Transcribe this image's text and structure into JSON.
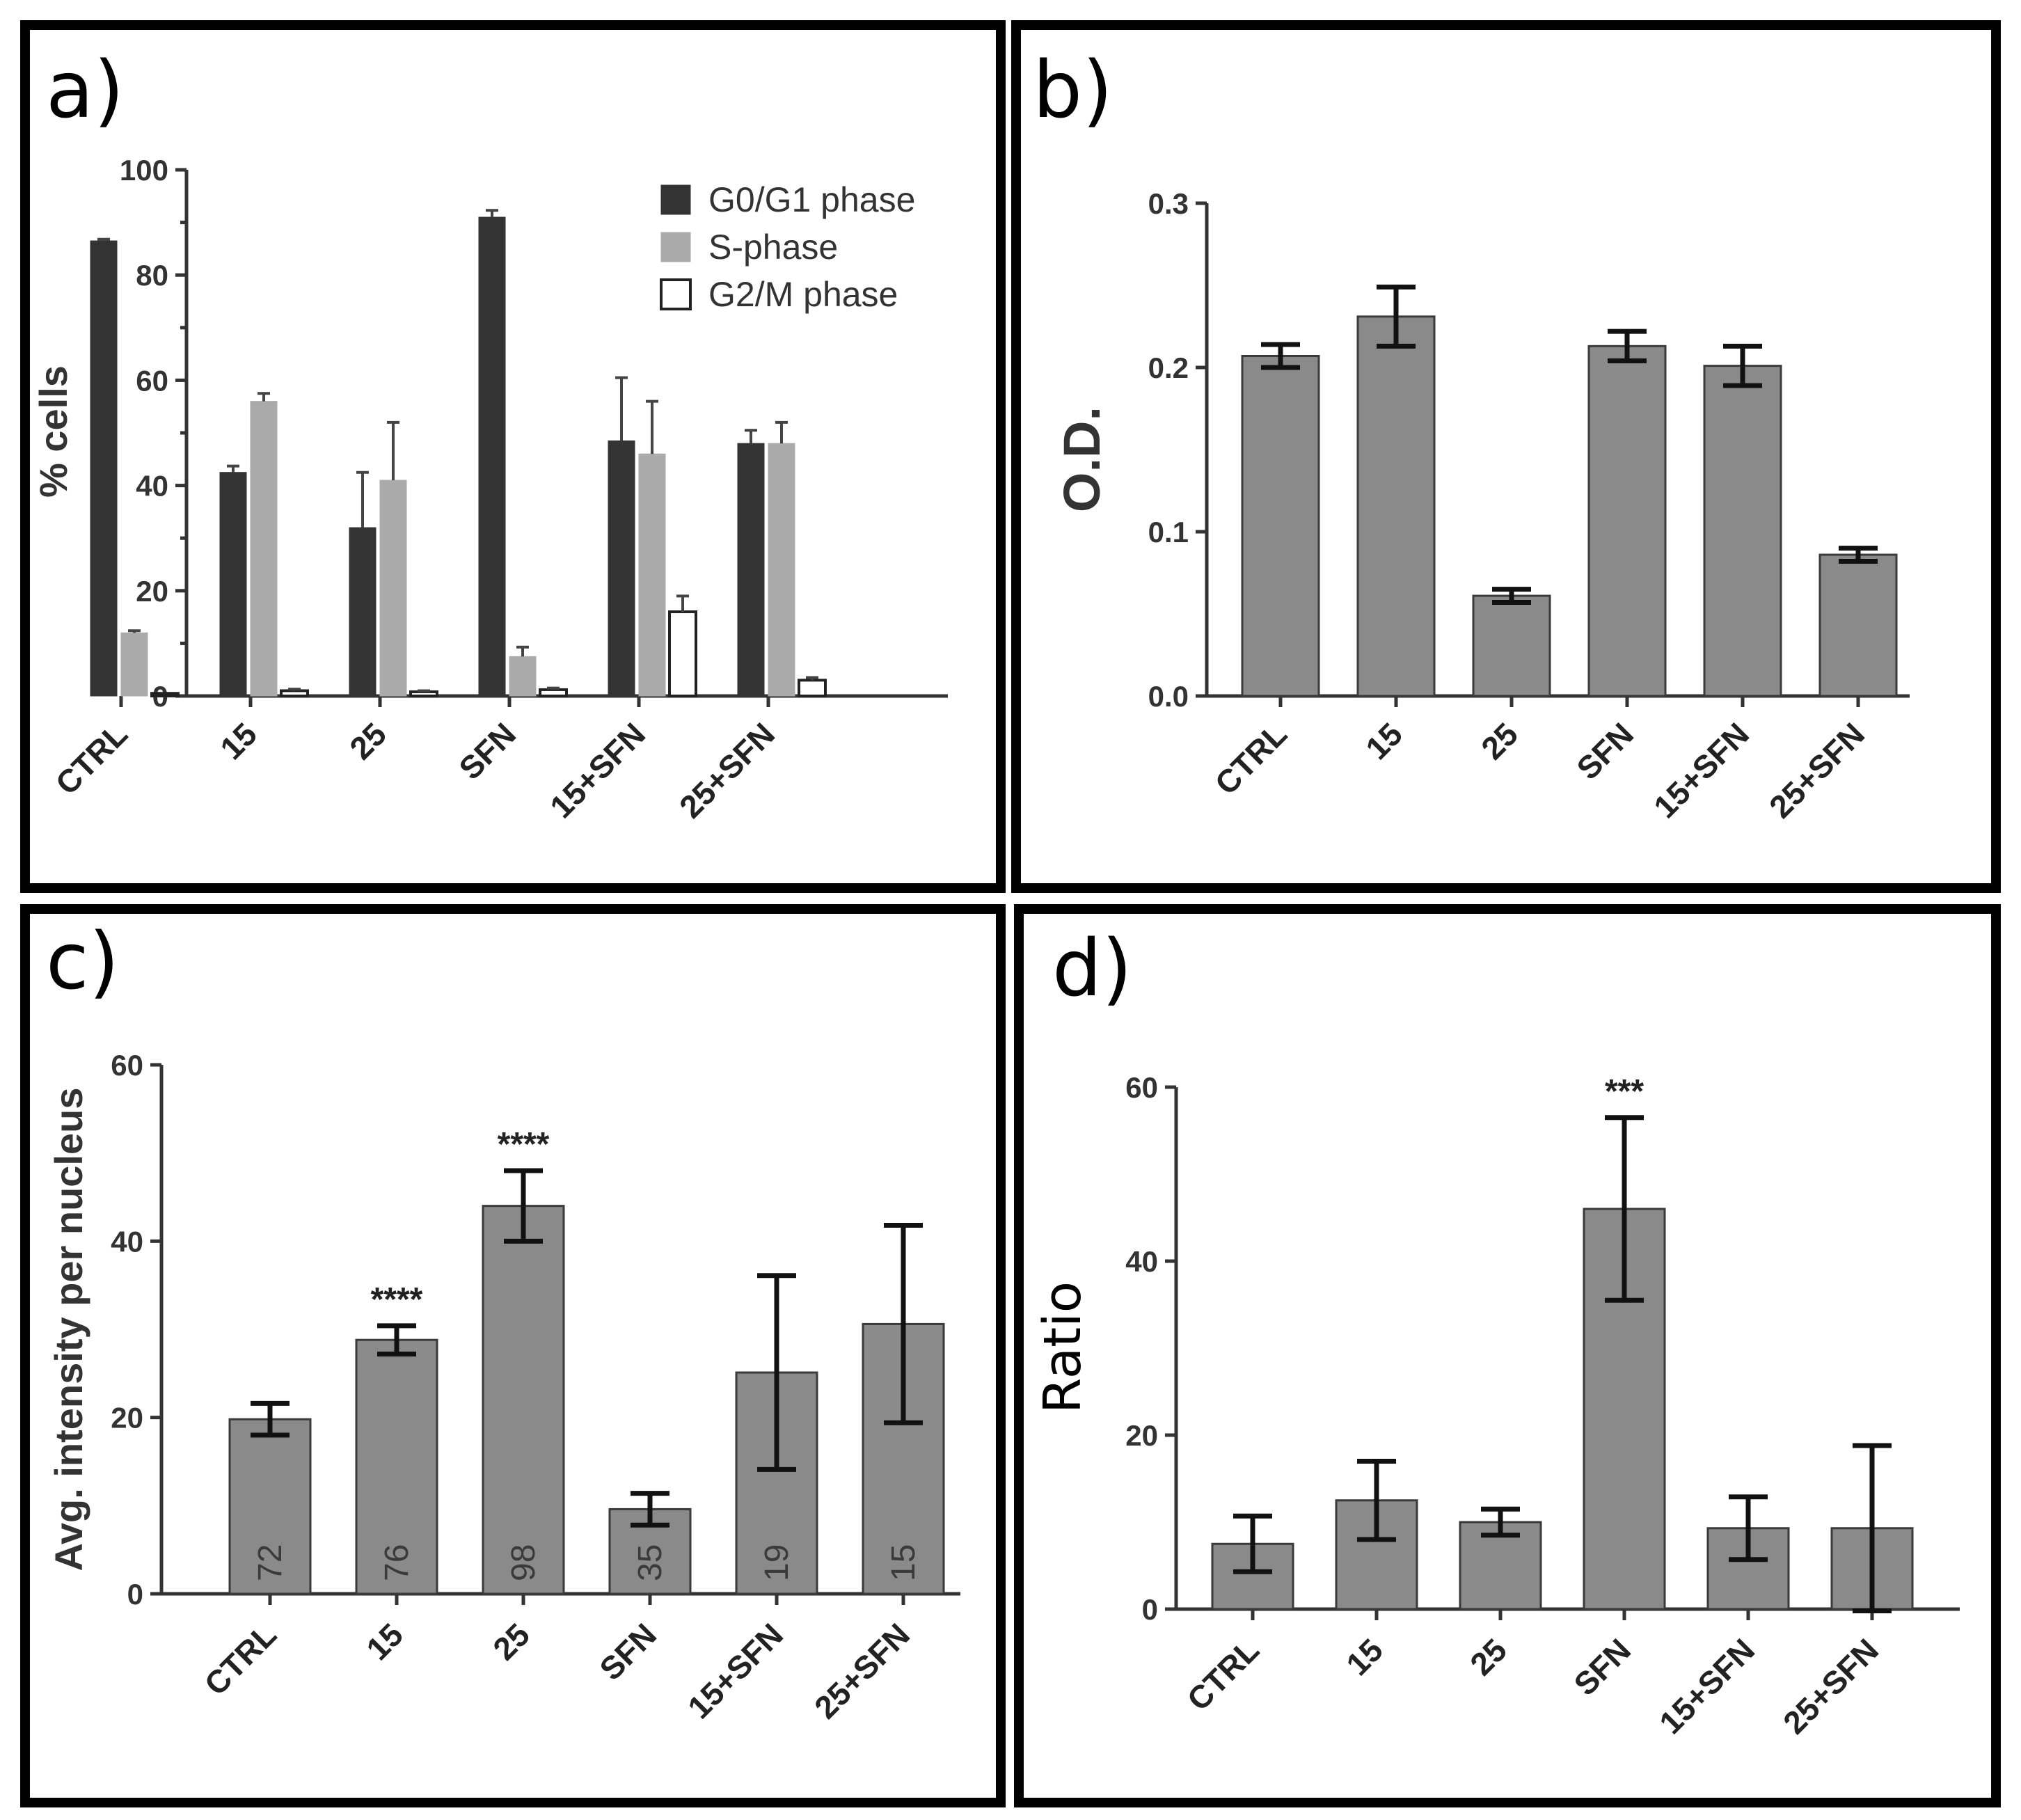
{
  "colors": {
    "bar_gray": "#8a8a8a",
    "bar_stroke": "#3a3a3a",
    "g0g1": "#333333",
    "s_phase": "#aaaaaa",
    "g2m": "#ffffff"
  },
  "chart_data": [
    {
      "panel": "a)",
      "type": "bar",
      "ylabel": "% cells",
      "ylim": [
        0,
        100
      ],
      "yticks": [
        "0",
        "20",
        "40",
        "60",
        "80",
        "100"
      ],
      "categories": [
        "CTRL",
        "15",
        "25",
        "SFN",
        "15+SFN",
        "25+SFN"
      ],
      "series": [
        {
          "name": "G0/G1 phase",
          "values": [
            86.5,
            42.5,
            32,
            91,
            48.5,
            48
          ],
          "errors": [
            0.3,
            1.2,
            10.5,
            1.3,
            12,
            2.5
          ]
        },
        {
          "name": "S-phase",
          "values": [
            12,
            56,
            41,
            7.5,
            46,
            48
          ],
          "errors": [
            0.4,
            1.5,
            11,
            1.8,
            10,
            4
          ]
        },
        {
          "name": "G2/M phase",
          "values": [
            0.5,
            1,
            0.8,
            1.2,
            16,
            3
          ],
          "errors": [
            0,
            0.3,
            0.2,
            0.3,
            3,
            0.5
          ]
        }
      ],
      "legend": [
        "G0/G1 phase",
        "S-phase",
        "G2/M phase"
      ]
    },
    {
      "panel": "b)",
      "type": "bar",
      "ylabel": "O.D.",
      "ylim": [
        0,
        0.3
      ],
      "yticks": [
        "0.0",
        "0.1",
        "0.2",
        "0.3"
      ],
      "categories": [
        "CTRL",
        "15",
        "25",
        "SFN",
        "15+SFN",
        "25+SFN"
      ],
      "values": [
        0.207,
        0.231,
        0.061,
        0.213,
        0.201,
        0.086
      ],
      "errors": [
        0.007,
        0.018,
        0.004,
        0.009,
        0.012,
        0.004
      ]
    },
    {
      "panel": "c)",
      "type": "bar",
      "ylabel": "Avg. intensity per nucleus",
      "ylim": [
        0,
        60
      ],
      "yticks": [
        "0",
        "20",
        "40",
        "60"
      ],
      "categories": [
        "CTRL",
        "15",
        "25",
        "SFN",
        "15+SFN",
        "25+SFN"
      ],
      "values": [
        19.8,
        28.8,
        44,
        9.6,
        25.1,
        30.6
      ],
      "errors": [
        1.8,
        1.6,
        4,
        1.8,
        11,
        11.2
      ],
      "bar_labels": [
        "72",
        "76",
        "98",
        "35",
        "19",
        "15"
      ],
      "annotations": [
        "",
        "****",
        "****",
        "",
        "",
        ""
      ]
    },
    {
      "panel": "d)",
      "type": "bar",
      "ylabel": "Ratio",
      "ylim": [
        0,
        60
      ],
      "yticks": [
        "0",
        "20",
        "40",
        "60"
      ],
      "categories": [
        "CTRL",
        "15",
        "25",
        "SFN",
        "15+SFN",
        "25+SFN"
      ],
      "values": [
        7.5,
        12.5,
        10,
        46,
        9.3,
        9.3
      ],
      "errors": [
        3.2,
        4.5,
        1.5,
        10.5,
        3.6,
        9.5
      ],
      "annotations": [
        "",
        "",
        "",
        "***",
        "",
        ""
      ]
    }
  ]
}
